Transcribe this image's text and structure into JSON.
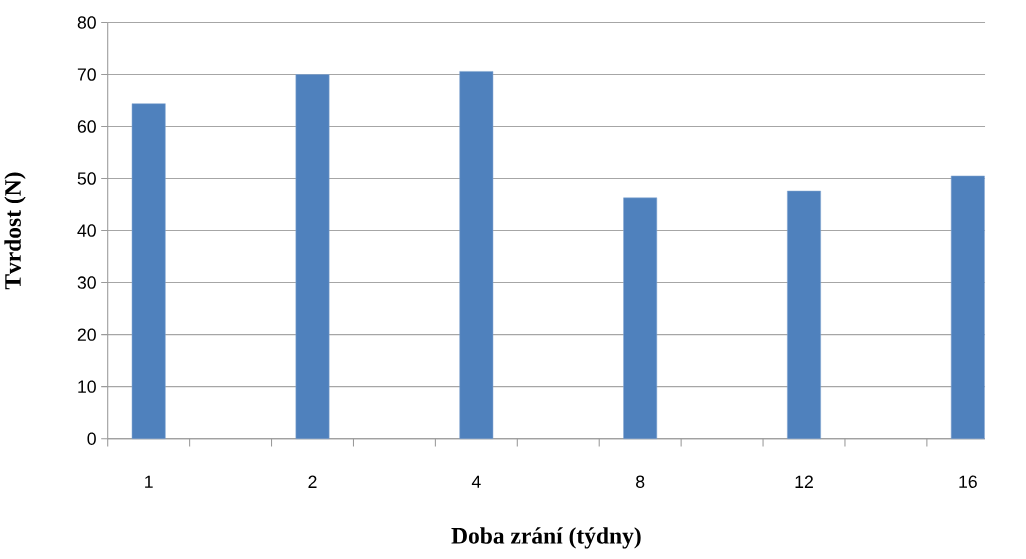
{
  "chart_data": {
    "type": "bar",
    "xlabel": "Doba zrání (týdny)",
    "ylabel": "Tvrdost (N)",
    "categories": [
      "1",
      null,
      "2",
      null,
      "4",
      null,
      "8",
      null,
      "12",
      null,
      "16"
    ],
    "values": [
      64.4,
      null,
      70.0,
      null,
      70.6,
      null,
      46.3,
      null,
      47.6,
      null,
      50.5
    ],
    "color": "#4f81bd",
    "ylim": [
      0,
      80
    ],
    "yticks": [
      0,
      10,
      20,
      30,
      40,
      50,
      60,
      70,
      80
    ],
    "grid": "y"
  }
}
